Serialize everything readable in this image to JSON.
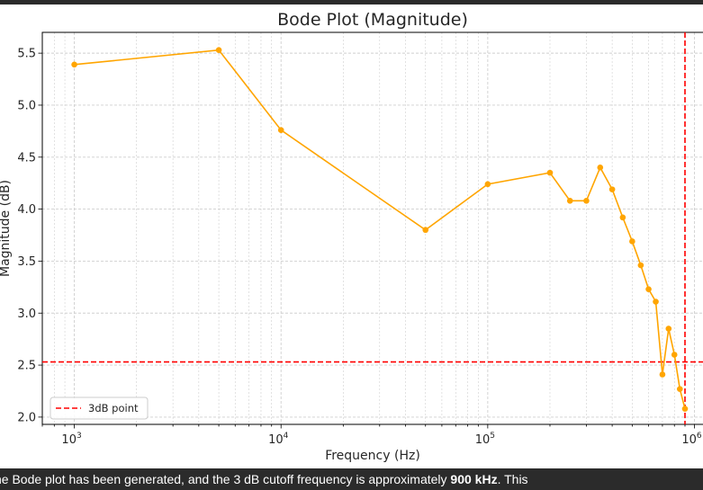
{
  "chart_data": {
    "type": "line",
    "title": "Bode Plot (Magnitude)",
    "xlabel": "Frequency (Hz)",
    "ylabel": "Magnitude (dB)",
    "xscale": "log",
    "xlim": [
      700,
      1100000
    ],
    "ylim": [
      1.93,
      5.7
    ],
    "grid": true,
    "x_ticks": [
      {
        "value": 1000,
        "base": "10",
        "exp": "3"
      },
      {
        "value": 10000,
        "base": "10",
        "exp": "4"
      },
      {
        "value": 100000,
        "base": "10",
        "exp": "5"
      },
      {
        "value": 1000000,
        "base": "10",
        "exp": "6"
      }
    ],
    "y_ticks": [
      "2.0",
      "2.5",
      "3.0",
      "3.5",
      "4.0",
      "4.5",
      "5.0",
      "5.5"
    ],
    "series": [
      {
        "color": "#FFA500",
        "x": [
          1000,
          5000,
          10000,
          50000,
          100000,
          200000,
          250000,
          300000,
          350000,
          400000,
          450000,
          500000,
          550000,
          600000,
          650000,
          700000,
          750000,
          800000,
          850000,
          900000
        ],
        "y": [
          5.39,
          5.53,
          4.76,
          3.8,
          4.24,
          4.35,
          4.08,
          4.08,
          4.4,
          4.19,
          3.92,
          3.69,
          3.46,
          3.23,
          3.11,
          2.41,
          2.85,
          2.6,
          2.27,
          2.08
        ]
      }
    ],
    "reference_lines": [
      {
        "orientation": "vertical",
        "value": 900000,
        "color": "#FF0000",
        "style": "dashed"
      },
      {
        "orientation": "horizontal",
        "value": 2.53,
        "color": "#FF0000",
        "style": "dashed"
      }
    ],
    "legend": {
      "placement": "lower-left",
      "entries": [
        {
          "label": "3dB point",
          "color": "#FF0000",
          "style": "dashed"
        }
      ]
    }
  },
  "caption": {
    "text": "he Bode plot has been generated, and the 3 dB cutoff frequency is approximately ",
    "highlight": "900 kHz",
    "tail": ". This"
  }
}
